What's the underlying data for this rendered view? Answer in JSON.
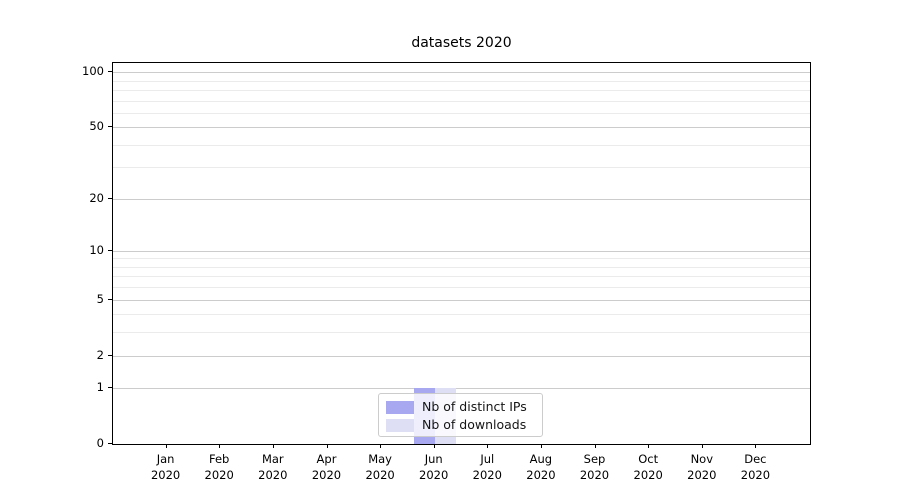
{
  "title": "datasets 2020",
  "chart_data": {
    "type": "bar",
    "title": "datasets 2020",
    "categories": [
      "Jan 2020",
      "Feb 2020",
      "Mar 2020",
      "Apr 2020",
      "May 2020",
      "Jun 2020",
      "Jul 2020",
      "Aug 2020",
      "Sep 2020",
      "Oct 2020",
      "Nov 2020",
      "Dec 2020"
    ],
    "series": [
      {
        "name": "Nb of distinct IPs",
        "color": "#a8a8f0",
        "values": [
          0,
          0,
          0,
          0,
          0,
          1,
          0,
          0,
          0,
          0,
          0,
          0
        ]
      },
      {
        "name": "Nb of downloads",
        "color": "#dedef5",
        "values": [
          0,
          0,
          0,
          0,
          0,
          1,
          0,
          0,
          0,
          0,
          0,
          0
        ]
      }
    ],
    "yscale": "log1p",
    "ylim": [
      0,
      112
    ],
    "yticks": [
      0,
      1,
      2,
      5,
      10,
      20,
      50,
      100
    ],
    "yticks_minor": [
      3,
      4,
      6,
      7,
      8,
      9,
      30,
      40,
      60,
      70,
      80,
      90
    ],
    "grid": "on",
    "legend_position": "lower center"
  },
  "colors": {
    "grid_major": "#cccccc",
    "grid_minor": "#ebebeb",
    "axis": "#000000"
  }
}
